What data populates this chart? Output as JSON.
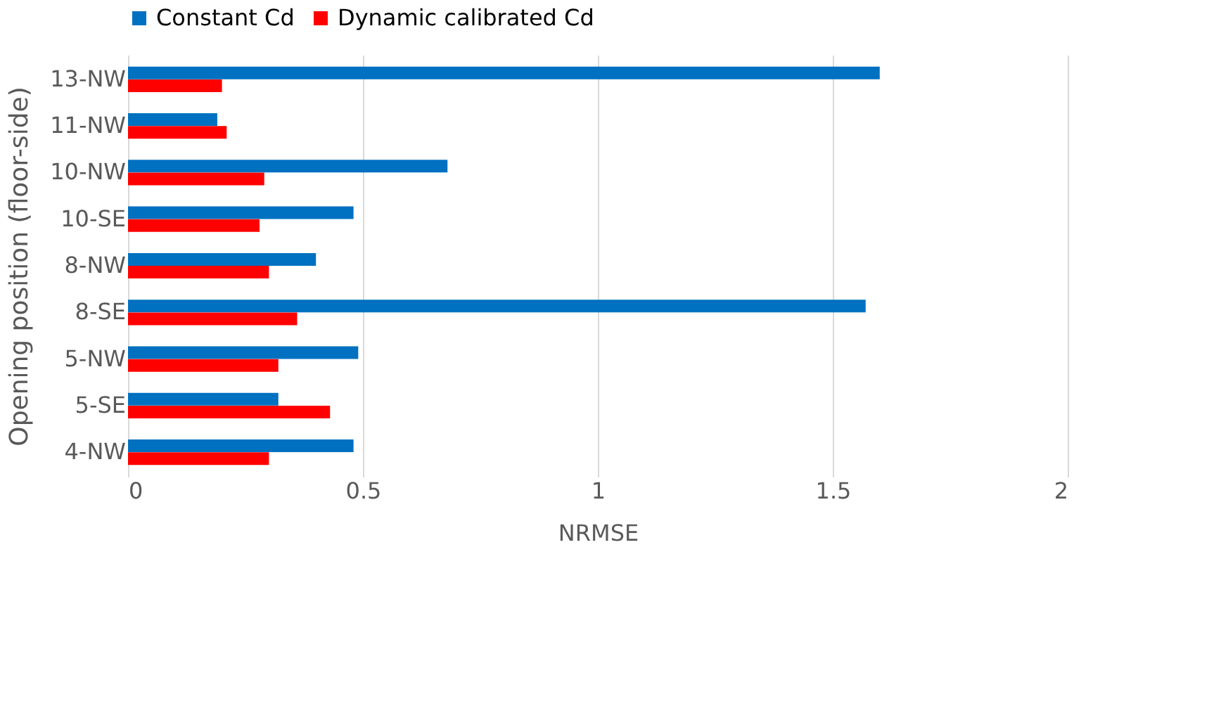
{
  "chart_data": {
    "type": "bar",
    "orientation": "horizontal",
    "xlabel": "NRMSE",
    "ylabel": "Opening position (floor-side)",
    "categories": [
      "13-NW",
      "11-NW",
      "10-NW",
      "10-SE",
      "8-NW",
      "8-SE",
      "5-NW",
      "5-SE",
      "4-NW"
    ],
    "series": [
      {
        "name": "Constant Cd",
        "color": "#0070c0",
        "values": [
          1.6,
          0.19,
          0.68,
          0.48,
          0.4,
          1.57,
          0.49,
          0.32,
          0.48
        ]
      },
      {
        "name": "Dynamic calibrated Cd",
        "color": "#ff0000",
        "values": [
          0.2,
          0.21,
          0.29,
          0.28,
          0.3,
          0.36,
          0.32,
          0.43,
          0.3
        ]
      }
    ],
    "xlim": [
      0,
      2
    ],
    "xticks": [
      0,
      0.5,
      1,
      1.5,
      2
    ],
    "grid": "x",
    "legend": "top"
  }
}
